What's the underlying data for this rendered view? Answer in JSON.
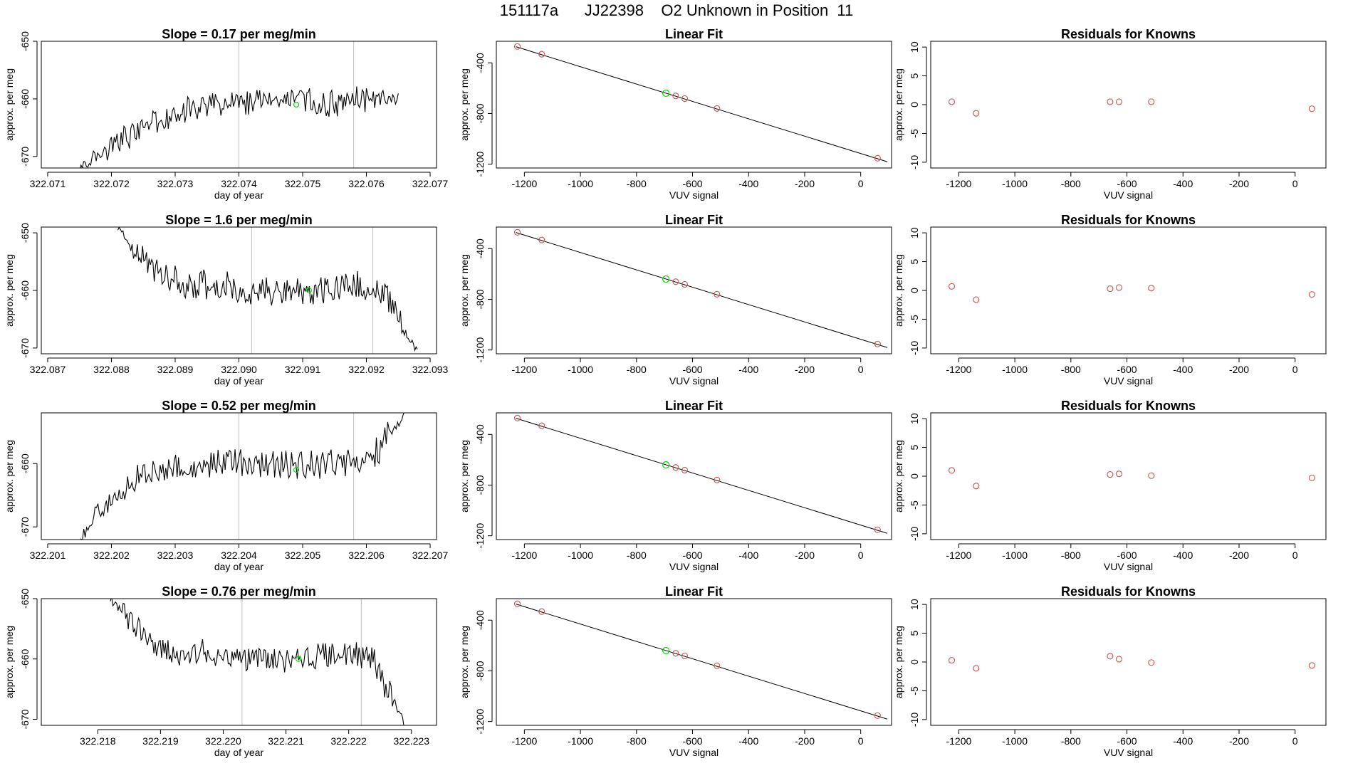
{
  "page_title": "151117a      JJ22398    O2 Unknown in Position  11",
  "colors": {
    "axis": "#000000",
    "series": "#000000",
    "vline": "#bfbfbf",
    "known_point": "#cd5c5c",
    "unknown_point": "#00dd00",
    "fit_line": "#000000"
  },
  "chart_data": [
    {
      "type": "line",
      "panel": "timeseries-1",
      "title": "Slope =  0.17  per meg/min",
      "xlabel": "day of year",
      "ylabel": "approx. per meg",
      "xlim": [
        322.0709,
        322.0771
      ],
      "ylim": [
        -672,
        -650
      ],
      "xticks": [
        322.071,
        322.072,
        322.073,
        322.074,
        322.075,
        322.076,
        322.077
      ],
      "xtick_labels": [
        "322.071",
        "322.072",
        "322.073",
        "322.074",
        "322.075",
        "322.076",
        "322.077"
      ],
      "yticks": [
        -650,
        -660,
        -670
      ],
      "ytick_labels": [
        "-650",
        "-660",
        "-670"
      ],
      "vlines": [
        322.074,
        322.0758
      ],
      "series_start": 322.0715,
      "series_end": 322.0765,
      "series_y": [
        -672,
        -668,
        -664,
        -662,
        -661,
        -660.5,
        -660,
        -661,
        -660,
        -660
      ],
      "seed": 11,
      "noise": 2.4,
      "marker": {
        "x": 322.0749,
        "y": -661
      }
    },
    {
      "type": "scatter",
      "panel": "linear-fit-1",
      "title": "Linear Fit",
      "xlabel": "VUV signal",
      "ylabel": "approx. per meg",
      "xlim": [
        -1300,
        110
      ],
      "ylim": [
        -1230,
        -230
      ],
      "xticks": [
        -1200,
        -1000,
        -800,
        -600,
        -400,
        -200,
        0
      ],
      "xtick_labels": [
        "-1200",
        "-1000",
        "-800",
        "-600",
        "-400",
        "-200",
        "0"
      ],
      "yticks": [
        -400,
        -800,
        -1200
      ],
      "ytick_labels": [
        "-400",
        "-800",
        "-1200"
      ],
      "fit_line": {
        "x": [
          -1230,
          95
        ],
        "y": [
          -273,
          -1181
        ]
      },
      "points": {
        "x": [
          -1225,
          -1138,
          -660,
          -628,
          -513,
          60
        ],
        "y": [
          -271,
          -332,
          -661,
          -682,
          -760,
          -1153
        ]
      },
      "unknown": {
        "x": -695,
        "y": -640
      }
    },
    {
      "type": "scatter",
      "panel": "residuals-1",
      "title": "Residuals for Knowns",
      "xlabel": "VUV signal",
      "ylabel": "approx. per meg",
      "xlim": [
        -1300,
        110
      ],
      "ylim": [
        -11,
        11
      ],
      "xticks": [
        -1200,
        -1000,
        -800,
        -600,
        -400,
        -200,
        0
      ],
      "xtick_labels": [
        "-1200",
        "-1000",
        "-800",
        "-600",
        "-400",
        "-200",
        "0"
      ],
      "yticks": [
        10,
        5,
        0,
        -5,
        -10
      ],
      "ytick_labels": [
        "10",
        "5",
        "0",
        "-5",
        "-10"
      ],
      "points": {
        "x": [
          -1225,
          -1138,
          -660,
          -628,
          -513,
          60
        ],
        "y": [
          0.5,
          -1.5,
          0.5,
          0.5,
          0.5,
          -0.7
        ]
      }
    },
    {
      "type": "line",
      "panel": "timeseries-2",
      "title": "Slope =  1.6  per meg/min",
      "xlabel": "day of year",
      "ylabel": "approx. per meg",
      "xlim": [
        322.0869,
        322.0931
      ],
      "ylim": [
        -671,
        -649
      ],
      "xticks": [
        322.087,
        322.088,
        322.089,
        322.09,
        322.091,
        322.092,
        322.093
      ],
      "xtick_labels": [
        "322.087",
        "322.088",
        "322.089",
        "322.090",
        "322.091",
        "322.092",
        "322.093"
      ],
      "yticks": [
        -650,
        -660,
        -670
      ],
      "ytick_labels": [
        "-650",
        "-660",
        "-670"
      ],
      "vlines": [
        322.0902,
        322.0921
      ],
      "series_start": 322.0881,
      "series_end": 322.0928,
      "series_y": [
        -649,
        -656,
        -659,
        -659,
        -660,
        -660,
        -660,
        -659,
        -660,
        -671
      ],
      "seed": 23,
      "noise": 2.6,
      "marker": {
        "x": 322.0911,
        "y": -660
      }
    },
    {
      "type": "scatter",
      "panel": "linear-fit-2",
      "title": "Linear Fit",
      "xlabel": "VUV signal",
      "ylabel": "approx. per meg",
      "xlim": [
        -1300,
        110
      ],
      "ylim": [
        -1230,
        -230
      ],
      "xticks": [
        -1200,
        -1000,
        -800,
        -600,
        -400,
        -200,
        0
      ],
      "xtick_labels": [
        "-1200",
        "-1000",
        "-800",
        "-600",
        "-400",
        "-200",
        "0"
      ],
      "yticks": [
        -400,
        -800,
        -1200
      ],
      "ytick_labels": [
        "-400",
        "-800",
        "-1200"
      ],
      "fit_line": {
        "x": [
          -1230,
          95
        ],
        "y": [
          -273,
          -1181
        ]
      },
      "points": {
        "x": [
          -1225,
          -1138,
          -660,
          -628,
          -513,
          60
        ],
        "y": [
          -271,
          -332,
          -661,
          -682,
          -760,
          -1153
        ]
      },
      "unknown": {
        "x": -695,
        "y": -640
      }
    },
    {
      "type": "scatter",
      "panel": "residuals-2",
      "title": "Residuals for Knowns",
      "xlabel": "VUV signal",
      "ylabel": "approx. per meg",
      "xlim": [
        -1300,
        110
      ],
      "ylim": [
        -11,
        11
      ],
      "xticks": [
        -1200,
        -1000,
        -800,
        -600,
        -400,
        -200,
        0
      ],
      "xtick_labels": [
        "-1200",
        "-1000",
        "-800",
        "-600",
        "-400",
        "-200",
        "0"
      ],
      "yticks": [
        10,
        5,
        0,
        -5,
        -10
      ],
      "ytick_labels": [
        "10",
        "5",
        "0",
        "-5",
        "-10"
      ],
      "points": {
        "x": [
          -1225,
          -1138,
          -660,
          -628,
          -513,
          60
        ],
        "y": [
          0.7,
          -1.6,
          0.3,
          0.5,
          0.4,
          -0.7
        ]
      }
    },
    {
      "type": "line",
      "panel": "timeseries-3",
      "title": "Slope =  0.52  per meg/min",
      "xlabel": "day of year",
      "ylabel": "approx. per meg",
      "xlim": [
        322.2009,
        322.2071
      ],
      "ylim": [
        -672,
        -652
      ],
      "xticks": [
        322.201,
        322.202,
        322.203,
        322.204,
        322.205,
        322.206,
        322.207
      ],
      "xtick_labels": [
        "322.201",
        "322.202",
        "322.203",
        "322.204",
        "322.205",
        "322.206",
        "322.207"
      ],
      "yticks": [
        -660,
        -670
      ],
      "ytick_labels": [
        "-660",
        "-670"
      ],
      "vlines": [
        322.204,
        322.2058
      ],
      "series_start": 322.2015,
      "series_end": 322.2066,
      "series_y": [
        -672,
        -664,
        -661,
        -660,
        -660,
        -660,
        -660,
        -660,
        -660,
        -652
      ],
      "seed": 37,
      "noise": 2.5,
      "marker": {
        "x": 322.2049,
        "y": -661
      }
    },
    {
      "type": "scatter",
      "panel": "linear-fit-3",
      "title": "Linear Fit",
      "xlabel": "VUV signal",
      "ylabel": "approx. per meg",
      "xlim": [
        -1300,
        110
      ],
      "ylim": [
        -1230,
        -230
      ],
      "xticks": [
        -1200,
        -1000,
        -800,
        -600,
        -400,
        -200,
        0
      ],
      "xtick_labels": [
        "-1200",
        "-1000",
        "-800",
        "-600",
        "-400",
        "-200",
        "0"
      ],
      "yticks": [
        -400,
        -800,
        -1200
      ],
      "ytick_labels": [
        "-400",
        "-800",
        "-1200"
      ],
      "fit_line": {
        "x": [
          -1230,
          95
        ],
        "y": [
          -273,
          -1181
        ]
      },
      "points": {
        "x": [
          -1225,
          -1138,
          -660,
          -628,
          -513,
          60
        ],
        "y": [
          -271,
          -332,
          -661,
          -682,
          -760,
          -1153
        ]
      },
      "unknown": {
        "x": -695,
        "y": -640
      }
    },
    {
      "type": "scatter",
      "panel": "residuals-3",
      "title": "Residuals for Knowns",
      "xlabel": "VUV signal",
      "ylabel": "approx. per meg",
      "xlim": [
        -1300,
        110
      ],
      "ylim": [
        -11,
        11
      ],
      "xticks": [
        -1200,
        -1000,
        -800,
        -600,
        -400,
        -200,
        0
      ],
      "xtick_labels": [
        "-1200",
        "-1000",
        "-800",
        "-600",
        "-400",
        "-200",
        "0"
      ],
      "yticks": [
        10,
        5,
        0,
        -5,
        -10
      ],
      "ytick_labels": [
        "10",
        "5",
        "0",
        "-5",
        "-10"
      ],
      "points": {
        "x": [
          -1225,
          -1138,
          -660,
          -628,
          -513,
          60
        ],
        "y": [
          1.0,
          -1.7,
          0.3,
          0.4,
          0.1,
          -0.3
        ]
      }
    },
    {
      "type": "line",
      "panel": "timeseries-4",
      "title": "Slope =  0.76  per meg/min",
      "xlabel": "day of year",
      "ylabel": "approx. per meg",
      "xlim": [
        322.2171,
        322.2234
      ],
      "ylim": [
        -671,
        -650
      ],
      "xticks": [
        322.218,
        322.219,
        322.22,
        322.221,
        322.222,
        322.223
      ],
      "xtick_labels": [
        "322.218",
        "322.219",
        "322.220",
        "322.221",
        "322.222",
        "322.223"
      ],
      "yticks": [
        -650,
        -660,
        -670
      ],
      "ytick_labels": [
        "-650",
        "-660",
        "-670"
      ],
      "vlines": [
        322.2203,
        322.2222
      ],
      "series_start": 322.2182,
      "series_end": 322.2229,
      "series_y": [
        -650,
        -656,
        -659,
        -659,
        -660,
        -660,
        -660,
        -659,
        -660,
        -671
      ],
      "seed": 53,
      "noise": 2.3,
      "marker": {
        "x": 322.2212,
        "y": -660
      }
    },
    {
      "type": "scatter",
      "panel": "linear-fit-4",
      "title": "Linear Fit",
      "xlabel": "VUV signal",
      "ylabel": "approx. per meg",
      "xlim": [
        -1300,
        110
      ],
      "ylim": [
        -1230,
        -230
      ],
      "xticks": [
        -1200,
        -1000,
        -800,
        -600,
        -400,
        -200,
        0
      ],
      "xtick_labels": [
        "-1200",
        "-1000",
        "-800",
        "-600",
        "-400",
        "-200",
        "0"
      ],
      "yticks": [
        -400,
        -800,
        -1200
      ],
      "ytick_labels": [
        "-400",
        "-800",
        "-1200"
      ],
      "fit_line": {
        "x": [
          -1230,
          95
        ],
        "y": [
          -273,
          -1181
        ]
      },
      "points": {
        "x": [
          -1225,
          -1138,
          -660,
          -628,
          -513,
          60
        ],
        "y": [
          -271,
          -332,
          -661,
          -682,
          -760,
          -1153
        ]
      },
      "unknown": {
        "x": -695,
        "y": -640
      }
    },
    {
      "type": "scatter",
      "panel": "residuals-4",
      "title": "Residuals for Knowns",
      "xlabel": "VUV signal",
      "ylabel": "approx. per meg",
      "xlim": [
        -1300,
        110
      ],
      "ylim": [
        -11,
        11
      ],
      "xticks": [
        -1200,
        -1000,
        -800,
        -600,
        -400,
        -200,
        0
      ],
      "xtick_labels": [
        "-1200",
        "-1000",
        "-800",
        "-600",
        "-400",
        "-200",
        "0"
      ],
      "yticks": [
        10,
        5,
        0,
        -5,
        -10
      ],
      "ytick_labels": [
        "10",
        "5",
        "0",
        "-5",
        "-10"
      ],
      "points": {
        "x": [
          -1225,
          -1138,
          -660,
          -628,
          -513,
          60
        ],
        "y": [
          0.3,
          -1.1,
          1.0,
          0.5,
          -0.1,
          -0.6
        ]
      }
    }
  ]
}
